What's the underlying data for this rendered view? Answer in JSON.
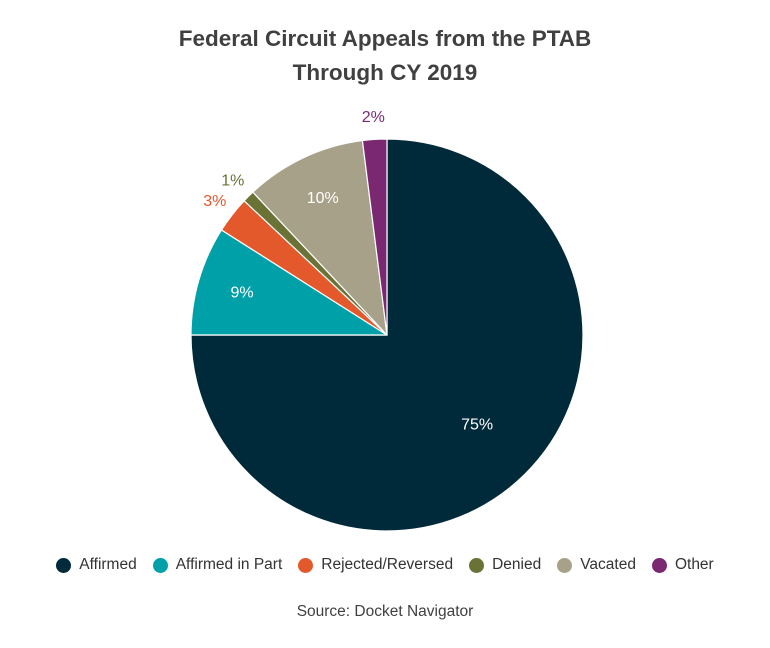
{
  "chart_data": {
    "type": "pie",
    "title": [
      "Federal Circuit Appeals from the PTAB",
      "Through CY 2019"
    ],
    "start_angle_deg": 0,
    "direction": "clockwise",
    "slices": [
      {
        "label": "Affirmed",
        "value": 75,
        "display": "75%",
        "color": "#002a3a",
        "label_color": "#ffffff",
        "label_placement": "inside"
      },
      {
        "label": "Affirmed in Part",
        "value": 9,
        "display": "9%",
        "color": "#00a0a8",
        "label_color": "#ffffff",
        "label_placement": "inside"
      },
      {
        "label": "Rejected/Reversed",
        "value": 3,
        "display": "3%",
        "color": "#e4592b",
        "label_color": "#e4592b",
        "label_placement": "outside"
      },
      {
        "label": "Denied",
        "value": 1,
        "display": "1%",
        "color": "#6b7235",
        "label_color": "#6b7235",
        "label_placement": "outside"
      },
      {
        "label": "Vacated",
        "value": 10,
        "display": "10%",
        "color": "#a7a189",
        "label_color": "#ffffff",
        "label_placement": "inside"
      },
      {
        "label": "Other",
        "value": 2,
        "display": "2%",
        "color": "#7a2872",
        "label_color": "#7a2872",
        "label_placement": "outside"
      }
    ],
    "legend_position": "bottom",
    "source": "Source: Docket Navigator"
  }
}
